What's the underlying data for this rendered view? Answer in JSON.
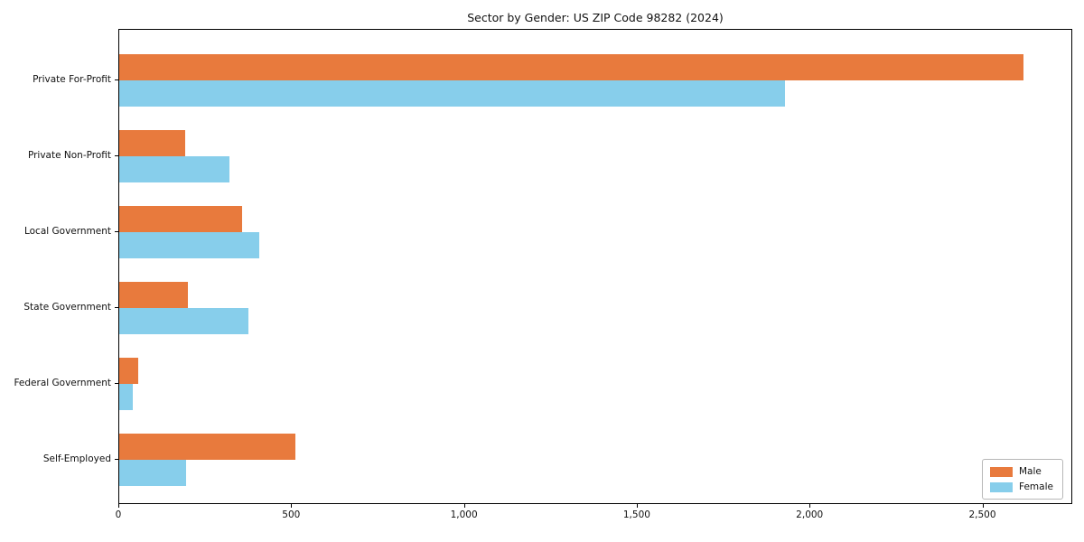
{
  "title": "Sector by Gender: US ZIP Code 98282 (2024)",
  "colors": {
    "male": "#e87a3d",
    "female": "#87ceeb",
    "axis": "#000000",
    "background": "#ffffff"
  },
  "chart_data": {
    "type": "bar",
    "orientation": "horizontal",
    "title": "Sector by Gender: US ZIP Code 98282 (2024)",
    "categories": [
      "Private For-Profit",
      "Private Non-Profit",
      "Local Government",
      "State Government",
      "Federal Government",
      "Self-Employed"
    ],
    "series": [
      {
        "name": "Male",
        "color": "#e87a3d",
        "values": [
          2620,
          190,
          355,
          200,
          55,
          510
        ]
      },
      {
        "name": "Female",
        "color": "#87ceeb",
        "values": [
          1930,
          320,
          405,
          375,
          38,
          195
        ]
      }
    ],
    "xlabel": "",
    "ylabel": "",
    "xlim": [
      0,
      2760
    ],
    "xticks": [
      0,
      500,
      1000,
      1500,
      2000,
      2500
    ],
    "xtick_labels": [
      "0",
      "500",
      "1,000",
      "1,500",
      "2,000",
      "2,500"
    ],
    "grid": false,
    "legend_position": "lower right"
  },
  "legend": {
    "items": [
      {
        "label": "Male",
        "color": "#e87a3d"
      },
      {
        "label": "Female",
        "color": "#87ceeb"
      }
    ]
  }
}
